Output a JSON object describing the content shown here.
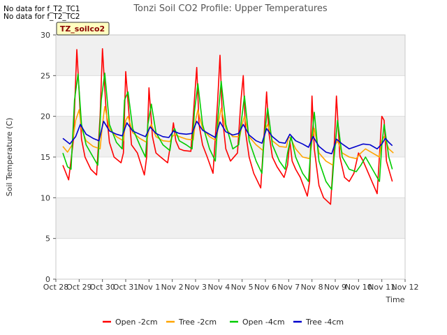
{
  "nodata_lines": [
    "No data for f_T2_TC1",
    "No data for f_T2_TC2"
  ],
  "chart_data": {
    "type": "line",
    "title": "Tonzi Soil CO2 Profile: Upper Temperatures",
    "xlabel": "Time",
    "ylabel": "Soil Temperature (C)",
    "ylim": [
      0,
      30
    ],
    "yticks": [
      0,
      5,
      10,
      15,
      20,
      25,
      30
    ],
    "xlim": [
      0,
      15
    ],
    "xticks": [
      0,
      1,
      2,
      3,
      4,
      5,
      6,
      7,
      8,
      9,
      10,
      11,
      12,
      13,
      14,
      15
    ],
    "xtick_labels": [
      "Oct 28",
      "Oct 29",
      "Oct 30",
      "Oct 31",
      "Nov 1",
      "Nov 2",
      "Nov 3",
      "Nov 4",
      "Nov 5",
      "Nov 6",
      "Nov 7",
      "Nov 8",
      "Nov 9",
      "Nov 10",
      "Nov 11",
      "Nov 12"
    ],
    "x_note": "x values are days after Oct 28",
    "grid": "horizontal bands",
    "legend_position": "bottom",
    "site_label": "TZ_soilco2",
    "series": [
      {
        "name": "Open -2cm",
        "color": "#ff0000",
        "x": [
          0.3,
          0.55,
          0.75,
          0.9,
          1.0,
          1.1,
          1.25,
          1.5,
          1.75,
          1.9,
          2.0,
          2.15,
          2.3,
          2.5,
          2.8,
          2.9,
          3.0,
          3.12,
          3.25,
          3.5,
          3.8,
          3.9,
          4.0,
          4.15,
          4.3,
          4.5,
          4.8,
          4.95,
          5.05,
          5.15,
          5.3,
          5.5,
          5.8,
          5.95,
          6.05,
          6.15,
          6.3,
          6.5,
          6.75,
          6.95,
          7.05,
          7.15,
          7.3,
          7.5,
          7.8,
          7.95,
          8.05,
          8.15,
          8.3,
          8.5,
          8.8,
          8.95,
          9.05,
          9.15,
          9.3,
          9.5,
          9.8,
          9.95,
          10.05,
          10.15,
          10.3,
          10.5,
          10.8,
          10.9,
          11.0,
          11.1,
          11.3,
          11.5,
          11.8,
          11.95,
          12.05,
          12.2,
          12.4,
          12.6,
          12.8,
          13.0,
          13.2,
          13.5,
          13.8,
          14.0,
          14.1,
          14.2,
          14.35,
          14.45
        ],
        "y": [
          14.0,
          12.2,
          17.0,
          28.2,
          23.0,
          17.2,
          15.0,
          13.5,
          12.8,
          20.0,
          28.3,
          21.0,
          16.8,
          15.0,
          14.3,
          15.5,
          25.5,
          21.0,
          16.5,
          15.5,
          12.8,
          15.0,
          23.5,
          17.5,
          15.5,
          15.0,
          14.3,
          17.0,
          19.2,
          17.0,
          16.0,
          15.8,
          15.7,
          22.0,
          26.0,
          19.0,
          16.5,
          15.0,
          13.0,
          22.0,
          27.5,
          20.0,
          16.0,
          14.5,
          15.5,
          22.0,
          25.0,
          18.0,
          15.0,
          13.0,
          11.2,
          18.0,
          23.0,
          18.0,
          15.0,
          13.8,
          12.5,
          14.0,
          17.0,
          14.5,
          13.5,
          12.5,
          10.2,
          12.0,
          22.5,
          16.0,
          11.5,
          10.0,
          9.2,
          16.0,
          22.5,
          15.0,
          12.5,
          12.0,
          13.0,
          15.5,
          14.5,
          12.5,
          10.5,
          20.0,
          19.5,
          14.5,
          13.0,
          12.0
        ]
      },
      {
        "name": "Tree -2cm",
        "color": "#ffa500",
        "x": [
          0.3,
          0.5,
          0.7,
          0.85,
          1.0,
          1.1,
          1.3,
          1.6,
          1.9,
          2.0,
          2.1,
          2.3,
          2.6,
          2.9,
          3.0,
          3.1,
          3.3,
          3.6,
          3.9,
          4.0,
          4.1,
          4.3,
          4.6,
          4.9,
          5.0,
          5.1,
          5.3,
          5.6,
          5.9,
          6.0,
          6.1,
          6.3,
          6.6,
          6.9,
          7.0,
          7.1,
          7.3,
          7.6,
          7.9,
          8.0,
          8.1,
          8.3,
          8.6,
          8.9,
          9.0,
          9.1,
          9.3,
          9.6,
          9.9,
          10.0,
          10.1,
          10.3,
          10.6,
          10.9,
          11.0,
          11.1,
          11.3,
          11.6,
          11.9,
          12.0,
          12.1,
          12.3,
          12.6,
          12.9,
          13.1,
          13.3,
          13.6,
          13.9,
          14.0,
          14.1,
          14.3,
          14.5
        ],
        "y": [
          16.3,
          15.6,
          16.5,
          19.5,
          20.8,
          18.5,
          17.0,
          16.3,
          16.0,
          19.0,
          21.2,
          18.5,
          17.5,
          17.0,
          19.5,
          20.0,
          18.0,
          17.3,
          16.8,
          18.5,
          19.0,
          17.5,
          17.0,
          16.9,
          17.5,
          17.8,
          17.5,
          17.2,
          17.1,
          19.5,
          20.8,
          18.5,
          17.5,
          17.0,
          19.5,
          21.0,
          18.5,
          17.5,
          17.5,
          19.0,
          20.0,
          17.5,
          16.5,
          15.8,
          18.5,
          19.0,
          17.0,
          16.3,
          16.2,
          17.5,
          17.2,
          16.0,
          15.0,
          14.8,
          17.0,
          18.5,
          15.5,
          14.5,
          14.0,
          16.5,
          17.0,
          15.5,
          15.0,
          14.8,
          15.5,
          16.0,
          15.5,
          15.0,
          17.0,
          17.5,
          16.0,
          15.5
        ]
      },
      {
        "name": "Open -4cm",
        "color": "#00cc00",
        "x": [
          0.3,
          0.5,
          0.65,
          0.8,
          0.95,
          1.1,
          1.3,
          1.6,
          1.8,
          1.95,
          2.1,
          2.3,
          2.6,
          2.85,
          2.95,
          3.1,
          3.3,
          3.6,
          3.85,
          3.95,
          4.1,
          4.3,
          4.6,
          4.9,
          5.0,
          5.1,
          5.3,
          5.6,
          5.85,
          5.95,
          6.1,
          6.3,
          6.6,
          6.85,
          6.95,
          7.1,
          7.3,
          7.6,
          7.85,
          7.95,
          8.1,
          8.3,
          8.6,
          8.85,
          8.95,
          9.1,
          9.3,
          9.6,
          9.85,
          9.95,
          10.1,
          10.3,
          10.6,
          10.85,
          10.95,
          11.1,
          11.3,
          11.6,
          11.85,
          11.95,
          12.1,
          12.3,
          12.6,
          12.9,
          13.1,
          13.3,
          13.6,
          13.9,
          14.0,
          14.1,
          14.3,
          14.45
        ],
        "y": [
          15.5,
          13.8,
          13.5,
          22.0,
          25.2,
          19.0,
          16.5,
          15.0,
          14.0,
          22.0,
          25.3,
          19.0,
          16.8,
          16.0,
          22.0,
          23.0,
          18.5,
          16.5,
          15.0,
          19.0,
          21.5,
          18.0,
          16.5,
          15.8,
          18.0,
          18.5,
          17.0,
          16.5,
          16.0,
          20.5,
          24.0,
          19.0,
          16.0,
          14.5,
          19.5,
          24.3,
          19.0,
          16.0,
          16.5,
          19.0,
          22.5,
          17.0,
          14.5,
          13.0,
          17.5,
          21.0,
          16.5,
          14.5,
          13.5,
          15.5,
          17.5,
          15.0,
          13.0,
          12.0,
          16.0,
          20.5,
          14.5,
          12.0,
          11.0,
          15.0,
          19.5,
          15.0,
          13.5,
          13.2,
          14.0,
          15.0,
          13.5,
          12.0,
          16.5,
          19.0,
          15.0,
          13.5
        ]
      },
      {
        "name": "Tree -4cm",
        "color": "#0000cc",
        "x": [
          0.3,
          0.6,
          0.85,
          1.05,
          1.3,
          1.6,
          1.85,
          2.05,
          2.3,
          2.6,
          2.85,
          3.05,
          3.3,
          3.6,
          3.85,
          4.05,
          4.3,
          4.6,
          4.85,
          5.05,
          5.3,
          5.6,
          5.85,
          6.05,
          6.3,
          6.6,
          6.85,
          7.05,
          7.3,
          7.6,
          7.85,
          8.05,
          8.3,
          8.6,
          8.85,
          9.05,
          9.3,
          9.6,
          9.85,
          10.05,
          10.3,
          10.6,
          10.85,
          11.05,
          11.3,
          11.6,
          11.85,
          12.05,
          12.3,
          12.6,
          12.9,
          13.2,
          13.5,
          13.8,
          14.0,
          14.15,
          14.3,
          14.45
        ],
        "y": [
          17.3,
          16.6,
          17.5,
          19.0,
          17.8,
          17.3,
          17.0,
          19.4,
          18.2,
          17.8,
          17.6,
          19.2,
          18.2,
          17.8,
          17.5,
          18.7,
          17.9,
          17.5,
          17.4,
          18.2,
          17.9,
          17.8,
          17.9,
          19.4,
          18.3,
          17.8,
          17.4,
          19.3,
          18.1,
          17.7,
          17.9,
          19.0,
          17.7,
          17.0,
          16.7,
          18.5,
          17.5,
          16.8,
          16.7,
          17.8,
          17.0,
          16.6,
          16.2,
          17.5,
          16.3,
          15.6,
          15.4,
          17.2,
          16.6,
          16.0,
          16.3,
          16.6,
          16.5,
          16.0,
          16.6,
          17.3,
          16.8,
          16.4
        ]
      }
    ]
  }
}
